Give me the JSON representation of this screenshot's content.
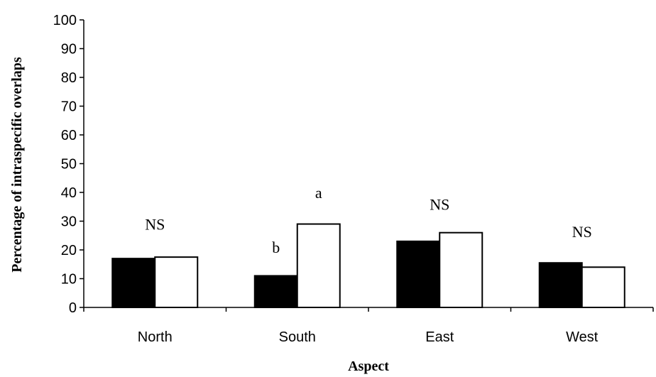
{
  "chart_data": {
    "type": "bar",
    "categories": [
      "North",
      "South",
      "East",
      "West"
    ],
    "series": [
      {
        "name": "",
        "color": "#000000",
        "values": [
          17,
          11,
          23,
          15.5
        ]
      },
      {
        "name": "",
        "color": "#ffffff",
        "values": [
          17.5,
          29,
          26,
          14
        ]
      }
    ],
    "annotations": [
      {
        "category": "North",
        "text": "NS",
        "y": 27
      },
      {
        "category": "South",
        "series": 0,
        "text": "b",
        "y": 19
      },
      {
        "category": "South",
        "series": 1,
        "text": "a",
        "y": 38
      },
      {
        "category": "East",
        "text": "NS",
        "y": 34
      },
      {
        "category": "West",
        "text": "NS",
        "y": 24.5
      }
    ],
    "title": "",
    "xlabel": "Aspect",
    "ylabel": "Percentage of intraspecific overlaps",
    "ylim": [
      0,
      100
    ],
    "yticks": [
      0,
      10,
      20,
      30,
      40,
      50,
      60,
      70,
      80,
      90,
      100
    ],
    "grid": false,
    "legend": "none"
  }
}
